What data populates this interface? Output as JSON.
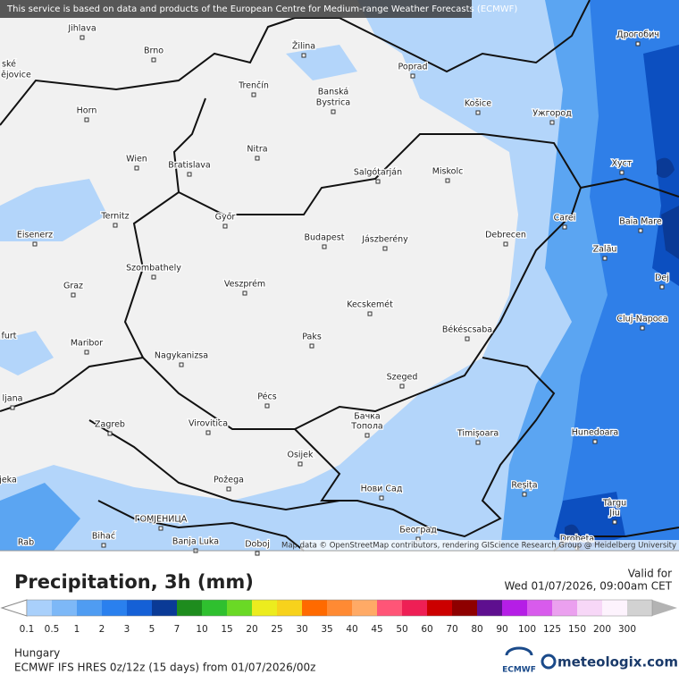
{
  "header": {
    "notice": "This service is based on data and products of the European Centre for Medium-range Weather Forecasts (ECMWF)"
  },
  "map": {
    "places": [
      "Jihlava",
      "Brno",
      "Žilina",
      "Poprad",
      "Дрогобич",
      "ské",
      "ějovice",
      "Trenčín",
      "Banská",
      "Bystrica",
      "Horn",
      "Košice",
      "Ужгород",
      "Nitra",
      "Wien",
      "Bratislava",
      "Salgótarján",
      "Miskolc",
      "Хуст",
      "Ternitz",
      "Győr",
      "Carei",
      "Baia Mare",
      "Eisenerz",
      "Budapest",
      "Jászberény",
      "Debrecen",
      "Szombathely",
      "Zalău",
      "Graz",
      "Veszprém",
      "Dej",
      "Kecskemét",
      "Cluj-Napoca",
      "furt",
      "Maribor",
      "Paks",
      "Békéscsaba",
      "Nagykanizsa",
      "Szeged",
      "Pécs",
      "ljana",
      "Бачка",
      "Топола",
      "Zagreb",
      "Virovitica",
      "Timișoara",
      "Hunedoara",
      "Osijek",
      "Požega",
      "jeka",
      "Нови Сад",
      "Reșița",
      "Târgu",
      "Jiu",
      "ГОМЈЕНИЦА",
      "Bihać",
      "Banja Luka",
      "Doboj",
      "Београд",
      "Rab",
      "Drobeta"
    ],
    "attribution": "Map data © OpenStreetMap contributors, rendering GIScience Research Group @ Heidelberg University"
  },
  "footer": {
    "title": "Precipitation, 3h (mm)",
    "valid_label": "Valid for",
    "valid_time": "Wed 01/07/2026, 09:00am CET",
    "legend": {
      "ticks": [
        "0.1",
        "0.5",
        "1",
        "2",
        "3",
        "5",
        "7",
        "10",
        "15",
        "20",
        "25",
        "30",
        "35",
        "40",
        "45",
        "50",
        "60",
        "70",
        "80",
        "90",
        "100",
        "125",
        "150",
        "200",
        "300"
      ],
      "colors": [
        "#a9d0fb",
        "#7db8f7",
        "#4f9cf2",
        "#2a80ee",
        "#1560d6",
        "#0a3a96",
        "#1e8c1e",
        "#2fc02f",
        "#6ad925",
        "#ecec1e",
        "#f7d21c",
        "#ff6a00",
        "#ff8a33",
        "#ffaa66",
        "#ff5577",
        "#ee1f55",
        "#cc0000",
        "#8e0000",
        "#5e0f8f",
        "#b51ee6",
        "#d85bec",
        "#eba0ef",
        "#f7d7f7",
        "#fdf3fd",
        "#d2d2d2"
      ],
      "below_color": "#ffffff",
      "above_color": "#b3b3b3"
    },
    "region": "Hungary",
    "model": "ECMWF IFS HRES 0z/12z (15 days) from  01/07/2026/00z",
    "logos": [
      "ECMWF",
      "meteologix.com"
    ]
  }
}
